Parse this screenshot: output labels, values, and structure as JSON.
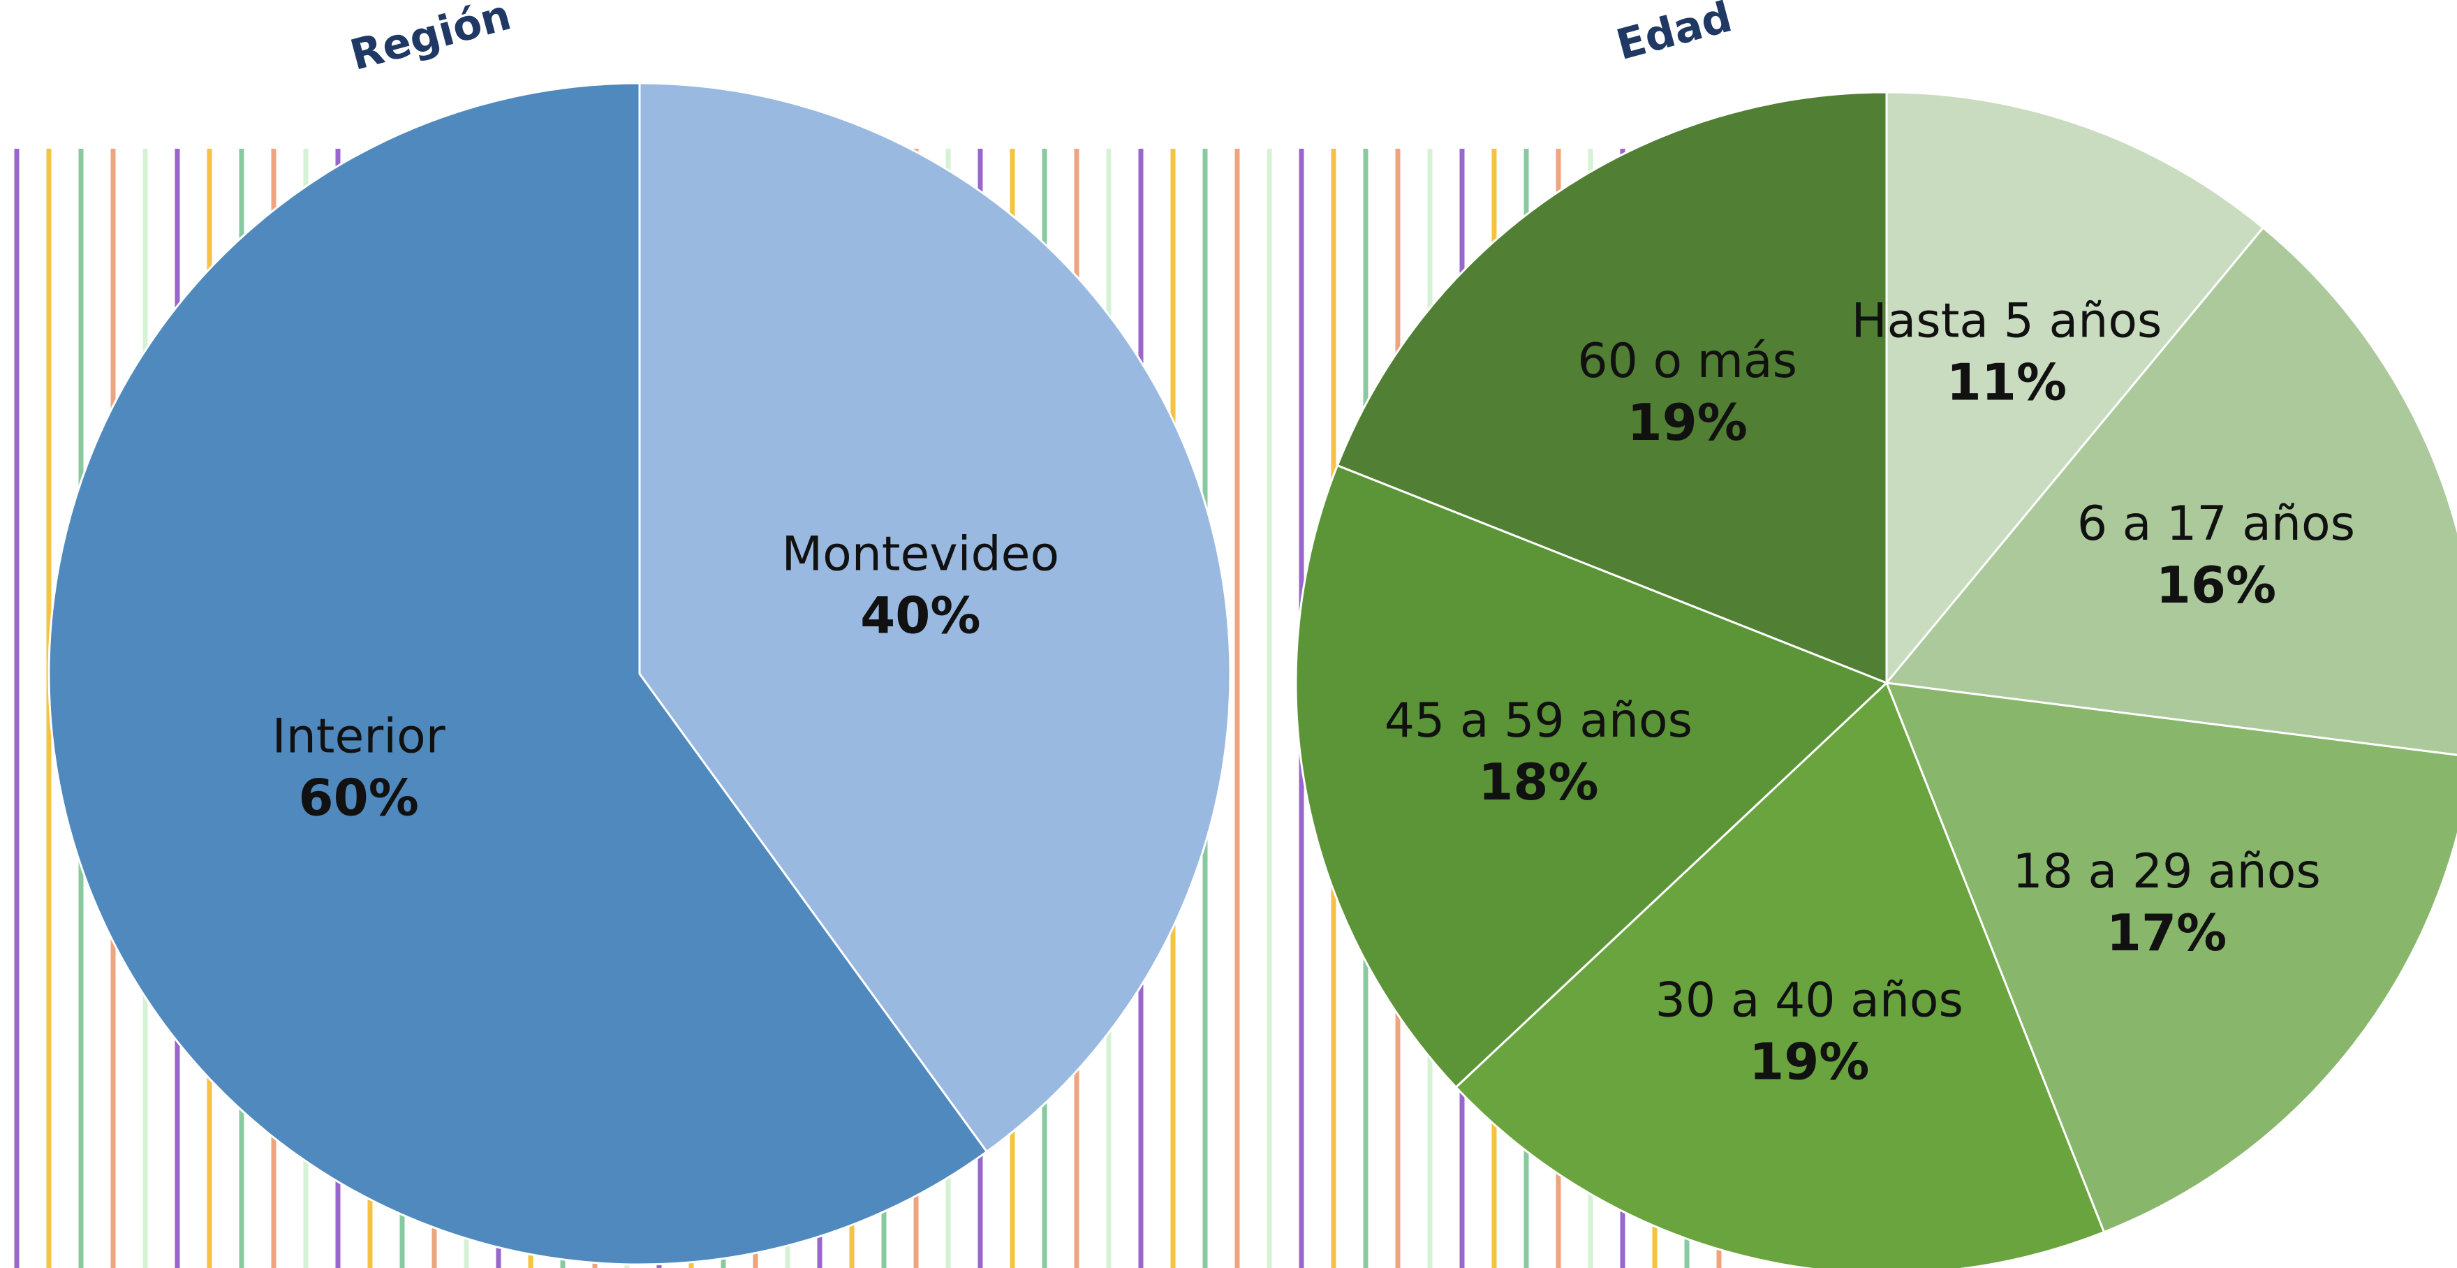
{
  "chart_data": [
    {
      "type": "pie",
      "title": "Región",
      "categories": [
        "Montevideo",
        "Interior"
      ],
      "values": [
        40,
        60
      ],
      "value_labels": [
        "40%",
        "60%"
      ],
      "colors": [
        "#99b9e0",
        "#5089bd"
      ]
    },
    {
      "type": "pie",
      "title": "Edad",
      "categories": [
        "Hasta 5 años",
        "6 a 17 años",
        "18 a 29 años",
        "30 a 40 años",
        "45 a 59 años",
        "60 o más"
      ],
      "values": [
        11,
        16,
        17,
        19,
        18,
        19
      ],
      "value_labels": [
        "11%",
        "16%",
        "17%",
        "19%",
        "18%",
        "19%"
      ],
      "colors": [
        "#c9dcc0",
        "#abc99a",
        "#88b66b",
        "#6aa43f",
        "#5c9538",
        "#517f33"
      ]
    }
  ]
}
